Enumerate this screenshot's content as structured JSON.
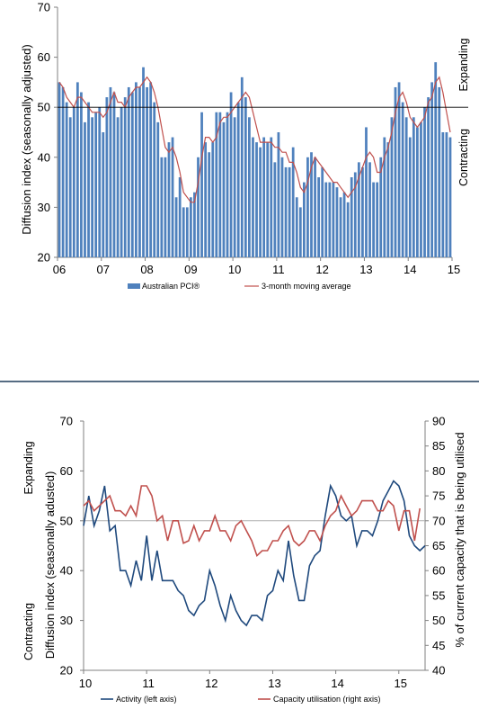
{
  "chart_data": [
    {
      "type": "bar",
      "ylabel": "Diffusion index (seasonally adjusted)",
      "ylim": [
        20,
        70
      ],
      "yticks": [
        20,
        30,
        40,
        50,
        60,
        70
      ],
      "xticks": [
        "06",
        "07",
        "08",
        "09",
        "10",
        "11",
        "12",
        "13",
        "14",
        "15"
      ],
      "reference_line": 50,
      "right_labels": {
        "top": "Expanding",
        "bottom": "Contracting"
      },
      "legend_placement": "bottom",
      "colors": {
        "bars": "#4f81bd",
        "line": "#c0504d",
        "axis": "#808080"
      },
      "series": [
        {
          "name": "Australian PCI®",
          "values": [
            55,
            54,
            51,
            48,
            50,
            55,
            53,
            47,
            51,
            48,
            49,
            50,
            45,
            52,
            54,
            53,
            48,
            50,
            52,
            54,
            53,
            55,
            54,
            58,
            54,
            55,
            51,
            47,
            40,
            40,
            43,
            44,
            32,
            36,
            30,
            30,
            32,
            33,
            40,
            49,
            43,
            41,
            43,
            49,
            49,
            47,
            49,
            53,
            48,
            51,
            56,
            52,
            48,
            44,
            43,
            42,
            44,
            43,
            44,
            39,
            45,
            40,
            38,
            38,
            42,
            32,
            30,
            35,
            40,
            41,
            40,
            36,
            38,
            35,
            35,
            35,
            34,
            32,
            33,
            31,
            36,
            37,
            39,
            38,
            46,
            39,
            35,
            35,
            40,
            44,
            43,
            48,
            54,
            55,
            51,
            48,
            44,
            48,
            46,
            47,
            50,
            52,
            55,
            59,
            54,
            45,
            45,
            44
          ]
        },
        {
          "name": "3-month moving average",
          "values": [
            55,
            54,
            52,
            51,
            50,
            52,
            52,
            51,
            50,
            49,
            49,
            49,
            48,
            49,
            51,
            53,
            51,
            51,
            50,
            52,
            53,
            54,
            54,
            55,
            56,
            55,
            53,
            50,
            46,
            42,
            41,
            42,
            40,
            37,
            33,
            32,
            31,
            31,
            35,
            40,
            44,
            44,
            43,
            44,
            47,
            48,
            48,
            49,
            50,
            51,
            52,
            53,
            52,
            49,
            46,
            43,
            43,
            43,
            43,
            42,
            42,
            41,
            41,
            39,
            39,
            37,
            34,
            33,
            35,
            38,
            40,
            39,
            38,
            37,
            36,
            35,
            35,
            34,
            33,
            32,
            33,
            34,
            36,
            38,
            40,
            41,
            40,
            37,
            37,
            40,
            42,
            45,
            49,
            52,
            53,
            51,
            48,
            47,
            46,
            47,
            48,
            51,
            52,
            55,
            56,
            53,
            49,
            45
          ]
        }
      ]
    },
    {
      "type": "line",
      "ylabel": "Diffusion index (seasonally adusted)",
      "y2label": "% of current capacity that is being utilised",
      "ylim": [
        20,
        70
      ],
      "y2lim": [
        40,
        90
      ],
      "yticks": [
        20,
        30,
        40,
        50,
        60,
        70
      ],
      "y2ticks": [
        40,
        45,
        50,
        55,
        60,
        65,
        70,
        75,
        80,
        85,
        90
      ],
      "xticks": [
        "10",
        "11",
        "12",
        "13",
        "14",
        "15"
      ],
      "reference_line": 50,
      "left_labels": {
        "top": "Expanding",
        "bottom": "Contracting"
      },
      "legend_placement": "bottom",
      "colors": {
        "activity": "#1f497d",
        "capacity": "#c0504d",
        "axis": "#808080"
      },
      "series": [
        {
          "name": "Activity (left axis)",
          "axis": "left",
          "values": [
            49,
            55,
            49,
            52,
            57,
            48,
            49,
            40,
            40,
            37,
            42,
            38,
            47,
            38,
            44,
            38,
            38,
            38,
            36,
            35,
            32,
            31,
            33,
            34,
            40,
            37,
            33,
            30,
            35,
            32,
            30,
            29,
            31,
            31,
            30,
            35,
            36,
            40,
            38,
            46,
            39,
            34,
            34,
            41,
            43,
            44,
            51,
            57,
            55,
            51,
            50,
            51,
            45,
            48,
            48,
            47,
            50,
            54,
            56,
            58,
            57,
            54,
            47,
            45,
            44,
            45
          ]
        },
        {
          "name": "Capacity utilisation (right axis)",
          "axis": "right",
          "values": [
            73,
            74,
            72,
            73,
            74,
            75,
            72,
            72,
            71,
            73,
            71,
            77,
            77,
            75,
            70,
            71,
            66,
            70,
            70,
            65.5,
            66,
            69,
            66,
            68,
            68,
            71,
            68,
            68,
            66,
            69,
            70,
            68,
            66,
            63,
            64,
            64,
            66,
            66,
            68,
            69,
            66,
            65,
            66,
            68,
            68,
            66,
            69,
            71,
            72,
            75,
            73,
            71,
            72,
            74,
            74,
            74,
            72,
            72,
            74,
            73,
            68,
            72,
            72,
            66,
            72.5
          ]
        }
      ]
    }
  ]
}
